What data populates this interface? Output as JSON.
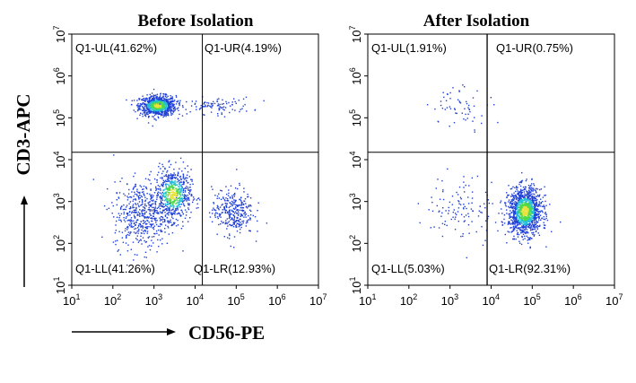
{
  "figure": {
    "x_axis_title": "CD56-PE",
    "y_axis_title": "CD3-APC"
  },
  "colors": {
    "low_density": "#1f3fd6",
    "mid_density": "#22c0d8",
    "high_density": "#4fd84a",
    "peak_density": "#e8e23a",
    "gate_line": "#000000"
  },
  "chart_data": [
    {
      "type": "scatter",
      "title": "Before Isolation",
      "xlabel": "CD56-PE",
      "ylabel": "CD3-APC",
      "x_scale": "log",
      "y_scale": "log",
      "xlim": [
        10,
        10000000
      ],
      "ylim": [
        10,
        10000000
      ],
      "x_ticks": [
        {
          "base": "10",
          "exp": "1"
        },
        {
          "base": "10",
          "exp": "2"
        },
        {
          "base": "10",
          "exp": "3"
        },
        {
          "base": "10",
          "exp": "4"
        },
        {
          "base": "10",
          "exp": "5"
        },
        {
          "base": "10",
          "exp": "6"
        },
        {
          "base": "10",
          "exp": "7"
        }
      ],
      "y_ticks": [
        {
          "base": "10",
          "exp": "1"
        },
        {
          "base": "10",
          "exp": "2"
        },
        {
          "base": "10",
          "exp": "3"
        },
        {
          "base": "10",
          "exp": "4"
        },
        {
          "base": "10",
          "exp": "5"
        },
        {
          "base": "10",
          "exp": "6"
        },
        {
          "base": "10",
          "exp": "7"
        }
      ],
      "gate": {
        "x": 15000,
        "y": 15000
      },
      "quadrants": [
        {
          "id": "UL",
          "label": "Q1-UL(41.62%)",
          "percent": 41.62
        },
        {
          "id": "UR",
          "label": "Q1-UR(4.19%)",
          "percent": 4.19
        },
        {
          "id": "LL",
          "label": "Q1-LL(41.26%)",
          "percent": 41.26
        },
        {
          "id": "LR",
          "label": "Q1-LR(12.93%)",
          "percent": 12.93
        }
      ],
      "populations": [
        {
          "center": [
            1200,
            200000
          ],
          "spread": [
            0.22,
            0.12
          ],
          "count": 900,
          "peak": true
        },
        {
          "center": [
            30000,
            200000
          ],
          "spread": [
            0.45,
            0.1
          ],
          "count": 100,
          "peak": false
        },
        {
          "center": [
            2800,
            1500
          ],
          "spread": [
            0.22,
            0.3
          ],
          "count": 650,
          "peak": true
        },
        {
          "center": [
            500,
            500
          ],
          "spread": [
            0.35,
            0.4
          ],
          "count": 500,
          "peak": false
        },
        {
          "center": [
            80000,
            600
          ],
          "spread": [
            0.25,
            0.28
          ],
          "count": 320,
          "peak": false
        }
      ]
    },
    {
      "type": "scatter",
      "title": "After Isolation",
      "xlabel": "CD56-PE",
      "ylabel": "CD3-APC",
      "x_scale": "log",
      "y_scale": "log",
      "xlim": [
        10,
        10000000
      ],
      "ylim": [
        10,
        10000000
      ],
      "x_ticks": [
        {
          "base": "10",
          "exp": "1"
        },
        {
          "base": "10",
          "exp": "2"
        },
        {
          "base": "10",
          "exp": "3"
        },
        {
          "base": "10",
          "exp": "4"
        },
        {
          "base": "10",
          "exp": "5"
        },
        {
          "base": "10",
          "exp": "6"
        },
        {
          "base": "10",
          "exp": "7"
        }
      ],
      "y_ticks": [
        {
          "base": "10",
          "exp": "1"
        },
        {
          "base": "10",
          "exp": "2"
        },
        {
          "base": "10",
          "exp": "3"
        },
        {
          "base": "10",
          "exp": "4"
        },
        {
          "base": "10",
          "exp": "5"
        },
        {
          "base": "10",
          "exp": "6"
        },
        {
          "base": "10",
          "exp": "7"
        }
      ],
      "gate": {
        "x": 8000,
        "y": 15000
      },
      "quadrants": [
        {
          "id": "UL",
          "label": "Q1-UL(1.91%)",
          "percent": 1.91
        },
        {
          "id": "UR",
          "label": "Q1-UR(0.75%)",
          "percent": 0.75
        },
        {
          "id": "LL",
          "label": "Q1-LL(5.03%)",
          "percent": 5.03
        },
        {
          "id": "LR",
          "label": "Q1-LR(92.31%)",
          "percent": 92.31
        }
      ],
      "populations": [
        {
          "center": [
            65000,
            600
          ],
          "spread": [
            0.2,
            0.28
          ],
          "count": 1300,
          "peak": true
        },
        {
          "center": [
            2000,
            200000
          ],
          "spread": [
            0.4,
            0.25
          ],
          "count": 60,
          "peak": false
        },
        {
          "center": [
            2000,
            700
          ],
          "spread": [
            0.45,
            0.4
          ],
          "count": 120,
          "peak": false
        }
      ]
    }
  ]
}
